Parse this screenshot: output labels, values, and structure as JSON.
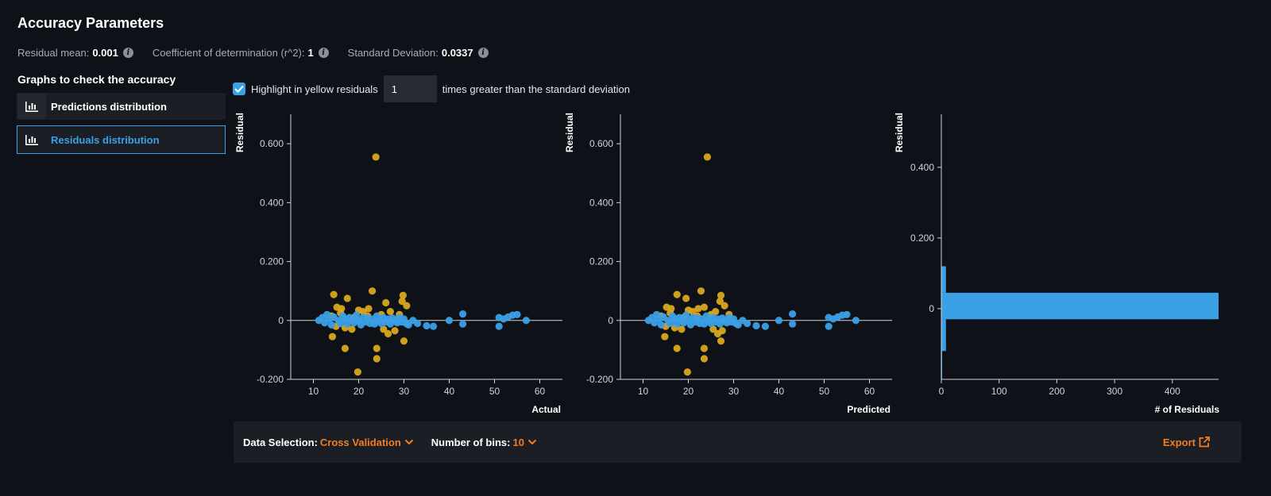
{
  "header": {
    "title": "Accuracy Parameters",
    "metrics": [
      {
        "label": "Residual mean:",
        "value": "0.001"
      },
      {
        "label": "Coefficient of determination (r^2):",
        "value": "1"
      },
      {
        "label": "Standard Deviation:",
        "value": "0.0337"
      }
    ]
  },
  "sidebar": {
    "title": "Graphs to check the accuracy",
    "items": [
      {
        "label": "Predictions distribution",
        "icon": "bar-chart-icon",
        "selected": false
      },
      {
        "label": "Residuals distribution",
        "icon": "bar-chart-icon",
        "selected": true
      }
    ]
  },
  "highlight": {
    "checked": true,
    "prefix": "Highlight in yellow residuals",
    "value": "1",
    "suffix": "times greater than the standard deviation"
  },
  "colors": {
    "normal": "#3ba0e6",
    "highlighted": "#d9a81c",
    "accent": "#f07d22"
  },
  "chart_data": [
    {
      "type": "scatter",
      "xlabel": "Actual",
      "ylabel": "Residual",
      "xlim": [
        5,
        65
      ],
      "ylim": [
        -0.2,
        0.7
      ],
      "xticks": [
        "10",
        "20",
        "30",
        "40",
        "50",
        "60"
      ],
      "yticks": [
        "-0.200",
        "0",
        "0.200",
        "0.400",
        "0.600"
      ],
      "series": [
        {
          "highlighted": true,
          "points": [
            [
              23.8,
              0.555
            ],
            [
              14.5,
              0.088
            ],
            [
              17.5,
              0.075
            ],
            [
              23.0,
              0.1
            ],
            [
              29.8,
              0.085
            ],
            [
              29.6,
              0.065
            ],
            [
              30.6,
              0.05
            ],
            [
              26.0,
              0.06
            ],
            [
              15.2,
              0.045
            ],
            [
              16.2,
              0.04
            ],
            [
              20.0,
              0.035
            ],
            [
              22.2,
              0.04
            ],
            [
              21.0,
              0.03
            ],
            [
              27.0,
              0.03
            ],
            [
              16.0,
              0.025
            ],
            [
              14.0,
              0.015
            ],
            [
              19.0,
              0.01
            ],
            [
              25.0,
              0.02
            ],
            [
              29.0,
              0.02
            ],
            [
              22.0,
              0.015
            ],
            [
              15.0,
              -0.02
            ],
            [
              17.0,
              -0.025
            ],
            [
              18.5,
              -0.03
            ],
            [
              25.5,
              -0.03
            ],
            [
              28.0,
              -0.035
            ],
            [
              14.2,
              -0.055
            ],
            [
              26.5,
              -0.045
            ],
            [
              30.0,
              -0.07
            ],
            [
              17.0,
              -0.095
            ],
            [
              24.0,
              -0.095
            ],
            [
              24.0,
              -0.13
            ],
            [
              19.8,
              -0.175
            ]
          ]
        },
        {
          "highlighted": false,
          "points": [
            [
              11.2,
              0.0
            ],
            [
              12.0,
              0.01
            ],
            [
              12.5,
              -0.008
            ],
            [
              13.0,
              0.02
            ],
            [
              13.5,
              0.005
            ],
            [
              14.0,
              -0.015
            ],
            [
              14.5,
              0.012
            ],
            [
              15.5,
              0.0
            ],
            [
              16.0,
              -0.01
            ],
            [
              16.5,
              0.015
            ],
            [
              17.0,
              0.005
            ],
            [
              17.5,
              -0.012
            ],
            [
              18.0,
              0.01
            ],
            [
              18.5,
              0.0
            ],
            [
              19.0,
              -0.008
            ],
            [
              19.5,
              0.018
            ],
            [
              20.0,
              0.0
            ],
            [
              20.5,
              -0.015
            ],
            [
              21.0,
              0.01
            ],
            [
              21.5,
              -0.005
            ],
            [
              22.0,
              0.008
            ],
            [
              22.5,
              -0.01
            ],
            [
              23.0,
              0.005
            ],
            [
              23.5,
              -0.012
            ],
            [
              24.0,
              0.015
            ],
            [
              24.5,
              0.0
            ],
            [
              25.0,
              -0.01
            ],
            [
              25.5,
              0.01
            ],
            [
              26.0,
              -0.005
            ],
            [
              26.5,
              0.005
            ],
            [
              27.0,
              -0.012
            ],
            [
              27.5,
              0.008
            ],
            [
              28.0,
              0.0
            ],
            [
              28.5,
              -0.008
            ],
            [
              29.0,
              0.01
            ],
            [
              29.5,
              -0.005
            ],
            [
              30.0,
              0.005
            ],
            [
              30.5,
              -0.01
            ],
            [
              31.0,
              -0.015
            ],
            [
              32.0,
              0.0
            ],
            [
              33.0,
              -0.01
            ],
            [
              35.0,
              -0.018
            ],
            [
              36.5,
              -0.02
            ],
            [
              40.0,
              0.0
            ],
            [
              43.0,
              0.022
            ],
            [
              43.0,
              -0.012
            ],
            [
              51.0,
              0.01
            ],
            [
              51.0,
              -0.02
            ],
            [
              52.0,
              0.005
            ],
            [
              53.0,
              0.012
            ],
            [
              54.0,
              0.018
            ],
            [
              55.0,
              0.02
            ],
            [
              57.0,
              0.0
            ]
          ]
        }
      ]
    },
    {
      "type": "scatter",
      "xlabel": "Predicted",
      "ylabel": "Residual",
      "xlim": [
        5,
        65
      ],
      "ylim": [
        -0.2,
        0.7
      ],
      "xticks": [
        "10",
        "20",
        "30",
        "40",
        "50",
        "60"
      ],
      "yticks": [
        "-0.200",
        "0",
        "0.200",
        "0.400",
        "0.600"
      ],
      "series": [
        {
          "highlighted": true,
          "points": [
            [
              24.2,
              0.555
            ],
            [
              17.5,
              0.088
            ],
            [
              19.5,
              0.075
            ],
            [
              22.8,
              0.1
            ],
            [
              27.2,
              0.085
            ],
            [
              27.0,
              0.065
            ],
            [
              28.0,
              0.05
            ],
            [
              23.5,
              0.045
            ],
            [
              15.2,
              0.045
            ],
            [
              16.2,
              0.04
            ],
            [
              20.0,
              0.035
            ],
            [
              22.2,
              0.04
            ],
            [
              21.0,
              0.03
            ],
            [
              26.0,
              0.03
            ],
            [
              16.0,
              0.025
            ],
            [
              14.0,
              0.015
            ],
            [
              19.0,
              0.01
            ],
            [
              25.0,
              0.02
            ],
            [
              29.0,
              0.02
            ],
            [
              22.0,
              0.015
            ],
            [
              15.0,
              -0.02
            ],
            [
              17.0,
              -0.025
            ],
            [
              18.5,
              -0.03
            ],
            [
              25.5,
              -0.03
            ],
            [
              27.5,
              -0.035
            ],
            [
              14.8,
              -0.055
            ],
            [
              26.5,
              -0.045
            ],
            [
              27.2,
              -0.07
            ],
            [
              17.5,
              -0.095
            ],
            [
              23.5,
              -0.095
            ],
            [
              23.5,
              -0.13
            ],
            [
              19.8,
              -0.175
            ]
          ]
        },
        {
          "highlighted": false,
          "points": [
            [
              11.2,
              0.0
            ],
            [
              12.0,
              0.01
            ],
            [
              12.5,
              -0.008
            ],
            [
              13.0,
              0.02
            ],
            [
              13.5,
              0.005
            ],
            [
              14.0,
              -0.015
            ],
            [
              14.5,
              0.012
            ],
            [
              15.5,
              0.0
            ],
            [
              16.0,
              -0.01
            ],
            [
              16.5,
              0.015
            ],
            [
              17.0,
              0.005
            ],
            [
              17.5,
              -0.012
            ],
            [
              18.0,
              0.01
            ],
            [
              18.5,
              0.0
            ],
            [
              19.0,
              -0.008
            ],
            [
              19.5,
              0.018
            ],
            [
              20.0,
              0.0
            ],
            [
              20.5,
              -0.015
            ],
            [
              21.0,
              0.01
            ],
            [
              21.5,
              -0.005
            ],
            [
              22.0,
              0.008
            ],
            [
              22.5,
              -0.01
            ],
            [
              23.0,
              0.005
            ],
            [
              23.5,
              -0.012
            ],
            [
              24.0,
              0.015
            ],
            [
              24.5,
              0.0
            ],
            [
              25.0,
              -0.01
            ],
            [
              25.5,
              0.01
            ],
            [
              26.0,
              -0.005
            ],
            [
              26.5,
              0.005
            ],
            [
              27.0,
              -0.012
            ],
            [
              27.5,
              0.008
            ],
            [
              28.0,
              0.0
            ],
            [
              28.5,
              -0.008
            ],
            [
              29.0,
              0.01
            ],
            [
              29.5,
              -0.005
            ],
            [
              30.0,
              0.005
            ],
            [
              30.5,
              -0.01
            ],
            [
              31.0,
              -0.015
            ],
            [
              32.0,
              0.0
            ],
            [
              33.0,
              -0.01
            ],
            [
              35.0,
              -0.018
            ],
            [
              37.0,
              -0.02
            ],
            [
              40.0,
              0.0
            ],
            [
              43.0,
              0.022
            ],
            [
              43.0,
              -0.012
            ],
            [
              51.0,
              0.01
            ],
            [
              51.0,
              -0.02
            ],
            [
              52.0,
              0.005
            ],
            [
              53.0,
              0.012
            ],
            [
              54.0,
              0.018
            ],
            [
              55.0,
              0.02
            ],
            [
              57.0,
              0.0
            ]
          ]
        }
      ]
    },
    {
      "type": "bar",
      "orientation": "horizontal",
      "xlabel": "# of Residuals",
      "ylabel": "Residual",
      "xlim": [
        0,
        480
      ],
      "ylim": [
        -0.2,
        0.55
      ],
      "xticks": [
        "0",
        "100",
        "200",
        "300",
        "400"
      ],
      "yticks": [
        "0",
        "0.200",
        "0.400"
      ],
      "bins": [
        {
          "from": -0.12,
          "to": -0.1,
          "count": 8
        },
        {
          "from": -0.1,
          "to": -0.03,
          "count": 8
        },
        {
          "from": -0.03,
          "to": 0.045,
          "count": 480
        },
        {
          "from": 0.045,
          "to": 0.12,
          "count": 8
        },
        {
          "from": -0.2,
          "to": -0.12,
          "count": 1
        }
      ]
    }
  ],
  "footer": {
    "data_selection_label": "Data Selection:",
    "data_selection_value": "Cross Validation",
    "bins_label": "Number of bins:",
    "bins_value": "10",
    "export_label": "Export"
  }
}
